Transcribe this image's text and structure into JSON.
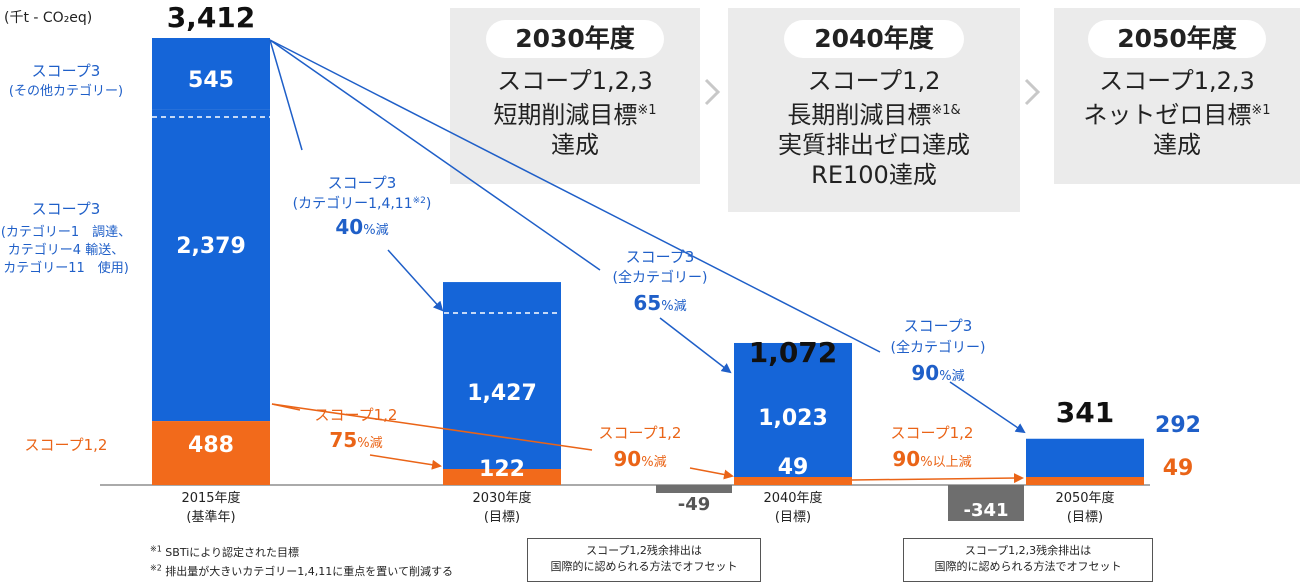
{
  "unit_label": "(千t - CO₂eq)",
  "colors": {
    "scope3": "#1565d8",
    "scope12": "#f26a1b",
    "offset": "#6e6e6e",
    "label_blue": "#1f5fc8",
    "label_orange": "#ea6417",
    "dark": "#222222"
  },
  "chart_data": {
    "type": "bar",
    "stacked": true,
    "title": "",
    "ylabel": "千t - CO₂eq",
    "categories": [
      "2015年度\n(基準年)",
      "2030年度\n(目標)",
      "2040年度\n(目標)",
      "2050年度\n(目標)"
    ],
    "series": [
      {
        "name": "スコープ1,2",
        "values": [
          488,
          122,
          49,
          49
        ]
      },
      {
        "name": "スコープ3 (カテゴリー1,4,11)",
        "values": [
          2379,
          1427,
          null,
          null
        ]
      },
      {
        "name": "スコープ3 (その他カテゴリー)",
        "values": [
          545,
          null,
          null,
          null
        ]
      },
      {
        "name": "スコープ3 (全カテゴリー)",
        "values": [
          null,
          null,
          1023,
          292
        ]
      },
      {
        "name": "オフセット",
        "values": [
          null,
          null,
          -49,
          -341
        ]
      }
    ],
    "totals": [
      "3,412",
      null,
      "1,072",
      "341"
    ],
    "segment_labels": {
      "y2015": [
        "545",
        "2,379",
        "488"
      ],
      "y2030": [
        "1,427",
        "122"
      ],
      "y2040": [
        "1,023",
        "49"
      ],
      "y2050": [
        "292",
        "49"
      ]
    },
    "offset_labels": [
      "-49",
      "-341"
    ],
    "left_legend": {
      "other": [
        "スコープ3",
        "(その他カテゴリー)"
      ],
      "main": [
        "スコープ3",
        "(カテゴリー1　調達、",
        "カテゴリー4 輸送、",
        "カテゴリー11　使用)"
      ],
      "s12": "スコープ1,2"
    },
    "annotations": {
      "a1": {
        "l1": "スコープ3",
        "l2": "(カテゴリー1,4,11",
        "l2sup": "※2",
        "l2end": ")",
        "num": "40",
        "unit": "%減"
      },
      "a2": {
        "l1": "スコープ3",
        "l2": "(全カテゴリー)",
        "num": "65",
        "unit": "%減"
      },
      "a3": {
        "l1": "スコープ3",
        "l2": "(全カテゴリー)",
        "num": "90",
        "unit": "%減"
      },
      "a4": {
        "l1": "スコープ1,2",
        "num": "75",
        "unit": "%減"
      },
      "a5": {
        "l1": "スコープ1,2",
        "num": "90",
        "unit": "%減"
      },
      "a6": {
        "l1": "スコープ1,2",
        "num": "90",
        "unit": "%以上減"
      }
    }
  },
  "goals": [
    {
      "year": "2030年度",
      "line1": "スコープ1,2,3",
      "line2": "短期削減目標",
      "line2sup": "※1",
      "line3": "達成",
      "line4": ""
    },
    {
      "year": "2040年度",
      "line1": "スコープ1,2",
      "line2": "長期削減目標",
      "line2sup": "※1&",
      "line3": "実質排出ゼロ達成",
      "line4": "RE100達成"
    },
    {
      "year": "2050年度",
      "line1": "スコープ1,2,3",
      "line2": "ネットゼロ目標",
      "line2sup": "※1",
      "line3": "達成",
      "line4": ""
    }
  ],
  "footnotes": [
    {
      "mark": "※1",
      "text": "SBTiにより認定された目標"
    },
    {
      "mark": "※2",
      "text": "排出量が大きいカテゴリー1,4,11に重点を置いて削減する"
    }
  ],
  "offset_notes": [
    {
      "l1": "スコープ1,2残余排出は",
      "l2": "国際的に認められる方法でオフセット"
    },
    {
      "l1": "スコープ1,2,3残余排出は",
      "l2": "国際的に認められる方法でオフセット"
    }
  ]
}
